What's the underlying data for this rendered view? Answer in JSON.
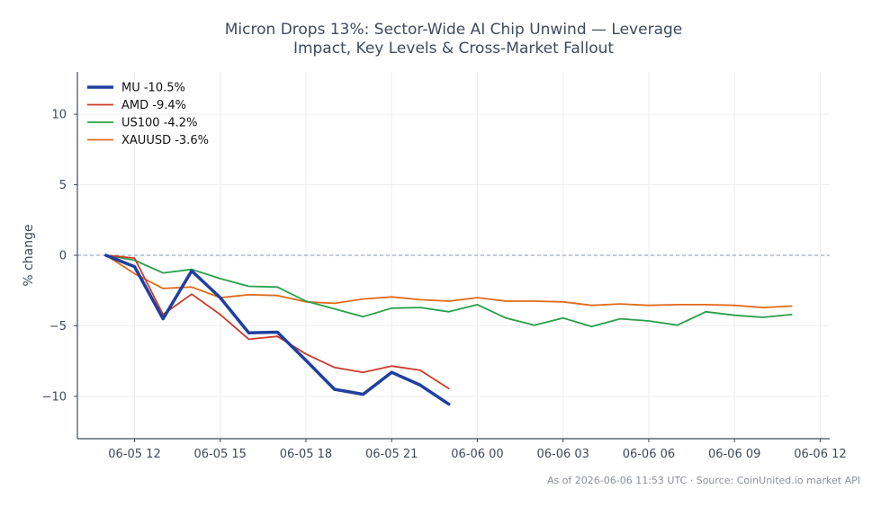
{
  "chart_data": {
    "type": "line",
    "title_lines": [
      "Micron Drops 13%: Sector-Wide AI Chip Unwind — Leverage",
      "Impact, Key Levels & Cross-Market Fallout"
    ],
    "xlabel": "",
    "ylabel": "% change",
    "ylim": [
      -13,
      13
    ],
    "xlim": [
      "06-05 10:00",
      "06-06 12:20"
    ],
    "y_ticks": [
      -10,
      -5,
      0,
      5,
      10
    ],
    "y_tick_labels": [
      "−10",
      "−5",
      "0",
      "5",
      "10"
    ],
    "x_ticks": [
      "06-05 12:00",
      "06-05 15:00",
      "06-05 18:00",
      "06-05 21:00",
      "06-06 00:00",
      "06-06 03:00",
      "06-06 06:00",
      "06-06 09:00",
      "06-06 12:00"
    ],
    "x_tick_labels": [
      "06-05 12",
      "06-05 15",
      "06-05 18",
      "06-05 21",
      "06-06 00",
      "06-06 03",
      "06-06 06",
      "06-06 09",
      "06-06 12"
    ],
    "grid": true,
    "zero_line": true,
    "legend_position": "top-left",
    "series": [
      {
        "name": "MU -10.5%",
        "color": "#1f3fa0",
        "width": 3.5,
        "x": [
          "06-05 11:00",
          "06-05 12:00",
          "06-05 13:00",
          "06-05 14:00",
          "06-05 15:00",
          "06-05 16:00",
          "06-05 17:00",
          "06-05 18:00",
          "06-05 19:00",
          "06-05 20:00",
          "06-05 21:00",
          "06-05 22:00",
          "06-05 23:00"
        ],
        "y": [
          0,
          -0.8,
          -4.5,
          -1.1,
          -3.0,
          -5.5,
          -5.45,
          -7.45,
          -9.5,
          -9.85,
          -8.3,
          -9.2,
          -10.55
        ]
      },
      {
        "name": "AMD -9.4%",
        "color": "#cc3a2c",
        "width": 1.8,
        "x": [
          "06-05 11:00",
          "06-05 12:00",
          "06-05 13:00",
          "06-05 14:00",
          "06-05 15:00",
          "06-05 16:00",
          "06-05 17:00",
          "06-05 18:00",
          "06-05 19:00",
          "06-05 20:00",
          "06-05 21:00",
          "06-05 22:00",
          "06-05 23:00"
        ],
        "y": [
          0,
          -0.2,
          -4.2,
          -2.75,
          -4.2,
          -5.95,
          -5.75,
          -7.0,
          -7.95,
          -8.3,
          -7.85,
          -8.15,
          -9.45
        ]
      },
      {
        "name": "US100 -4.2%",
        "color": "#27a04a",
        "width": 1.8,
        "x": [
          "06-05 11:00",
          "06-05 12:00",
          "06-05 13:00",
          "06-05 14:00",
          "06-05 15:00",
          "06-05 16:00",
          "06-05 17:00",
          "06-05 18:00",
          "06-05 19:00",
          "06-05 20:00",
          "06-05 21:00",
          "06-05 22:00",
          "06-05 23:00",
          "06-06 00:00",
          "06-06 01:00",
          "06-06 02:00",
          "06-06 03:00",
          "06-06 04:00",
          "06-06 05:00",
          "06-06 06:00",
          "06-06 07:00",
          "06-06 08:00",
          "06-06 09:00",
          "06-06 10:00",
          "06-06 11:00"
        ],
        "y": [
          0,
          -0.35,
          -1.25,
          -1.0,
          -1.65,
          -2.2,
          -2.25,
          -3.25,
          -3.8,
          -4.35,
          -3.75,
          -3.7,
          -4.0,
          -3.5,
          -4.45,
          -4.95,
          -4.45,
          -5.05,
          -4.5,
          -4.65,
          -4.95,
          -4.0,
          -4.25,
          -4.4,
          -4.2
        ]
      },
      {
        "name": "XAUUSD -3.6%",
        "color": "#e06a1a",
        "width": 1.8,
        "x": [
          "06-05 11:00",
          "06-05 12:00",
          "06-05 13:00",
          "06-05 14:00",
          "06-05 15:00",
          "06-05 16:00",
          "06-05 17:00",
          "06-05 18:00",
          "06-05 19:00",
          "06-05 20:00",
          "06-05 21:00",
          "06-05 22:00",
          "06-05 23:00",
          "06-06 00:00",
          "06-06 01:00",
          "06-06 02:00",
          "06-06 03:00",
          "06-06 04:00",
          "06-06 05:00",
          "06-06 06:00",
          "06-06 07:00",
          "06-06 08:00",
          "06-06 09:00",
          "06-06 10:00",
          "06-06 11:00"
        ],
        "y": [
          0,
          -1.3,
          -2.35,
          -2.25,
          -3.0,
          -2.8,
          -2.85,
          -3.3,
          -3.4,
          -3.1,
          -2.95,
          -3.15,
          -3.25,
          -3.0,
          -3.25,
          -3.25,
          -3.3,
          -3.55,
          -3.45,
          -3.55,
          -3.5,
          -3.5,
          -3.55,
          -3.7,
          -3.6
        ]
      }
    ],
    "footer": "As of 2026-06-06 11:53 UTC · Source: CoinUnited.io market API"
  }
}
